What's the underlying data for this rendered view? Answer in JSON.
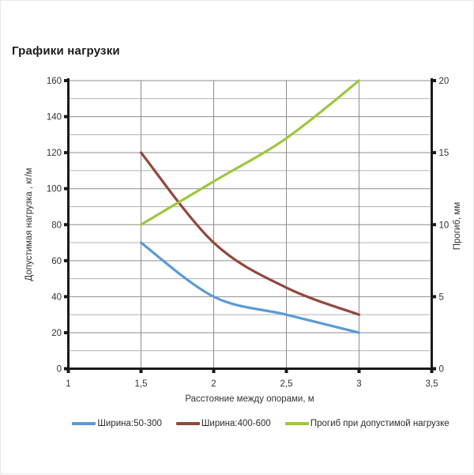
{
  "title": "Графики нагрузки",
  "chart_data": {
    "type": "line",
    "x": [
      1.5,
      2,
      2.5,
      3
    ],
    "series": [
      {
        "name": "Ширина:50-300",
        "axis": "left",
        "color": "#5B9BD5",
        "values": [
          70,
          40,
          30,
          20
        ]
      },
      {
        "name": "Ширина:400-600",
        "axis": "left",
        "color": "#91493C",
        "values": [
          120,
          70,
          45,
          30
        ]
      },
      {
        "name": "Прогиб при допустимой нагрузке",
        "axis": "right",
        "color": "#9CC83E",
        "values": [
          10,
          13,
          16,
          20
        ]
      }
    ],
    "xlabel": "Расстояние между опорами, м",
    "ylabel_left": "Допустимая нагрузка , кг/м",
    "ylabel_right": "Прогиб, мм",
    "xlim": [
      1,
      3.5
    ],
    "xticks": [
      1,
      1.5,
      2,
      2.5,
      3,
      3.5
    ],
    "xtick_labels": [
      "1",
      "1,5",
      "2",
      "2,5",
      "3",
      "3,5"
    ],
    "ylim_left": [
      0,
      160
    ],
    "yticks_left": [
      0,
      20,
      40,
      60,
      80,
      100,
      120,
      140,
      160
    ],
    "ygrid_step_left": 10,
    "ylim_right": [
      0,
      20
    ],
    "yticks_right": [
      0,
      5,
      10,
      15,
      20
    ],
    "grid": true,
    "legend_position": "bottom",
    "colors": {
      "axis": "#1a1a1a",
      "grid_major": "#8c8c8c",
      "grid_minor": "#b3b3b3",
      "tick_text": "#333333"
    }
  }
}
